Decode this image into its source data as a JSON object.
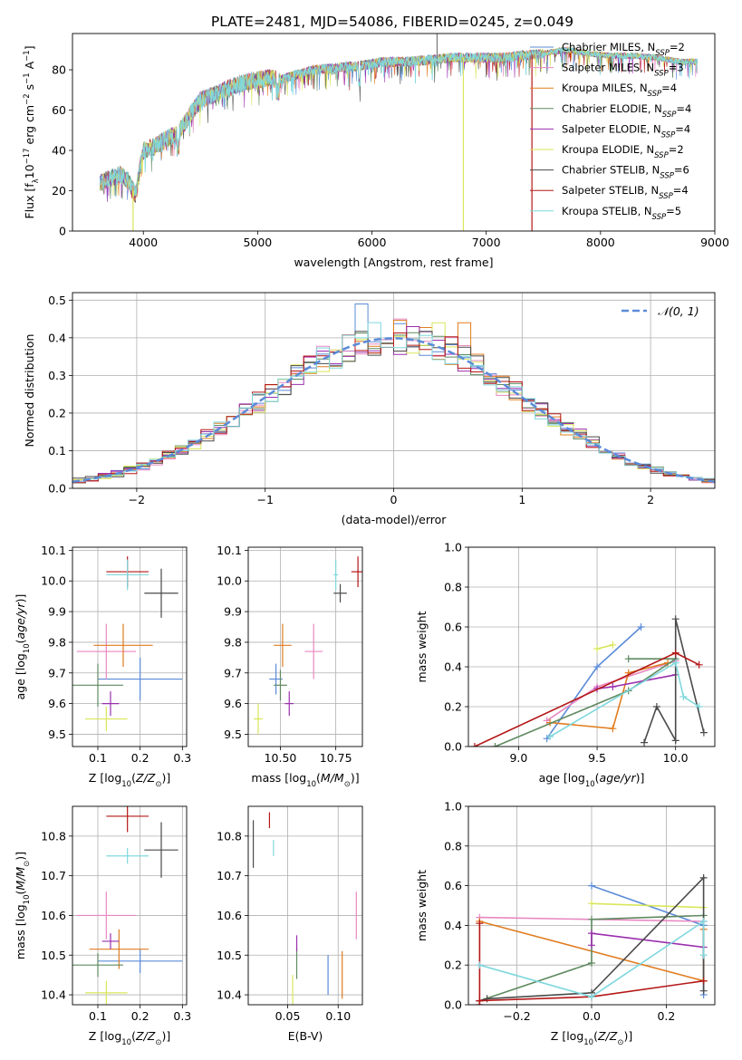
{
  "title": "PLATE=2481, MJD=54086, FIBERID=0245, z=0.049",
  "legend_top": [
    "Chabrier MILES, N$_{SSP}$=2",
    "Salpeter MILES, N$_{SSP}$=3",
    "Kroupa MILES, N$_{SSP}$=4",
    "Chabrier ELODIE, N$_{SSP}$=4",
    "Salpeter ELODIE, N$_{SSP}$=4",
    "Kroupa ELODIE, N$_{SSP}$=2",
    "Chabrier STELIB, N$_{SSP}$=6",
    "Salpeter STELIB, N$_{SSP}$=4",
    "Kroupa STELIB, N$_{SSP}$=5"
  ],
  "legend_top_display": [
    [
      "Chabrier MILES, N",
      "SSP",
      "=2"
    ],
    [
      "Salpeter MILES, N",
      "SSP",
      "=3"
    ],
    [
      "Kroupa MILES, N",
      "SSP",
      "=4"
    ],
    [
      "Chabrier ELODIE, N",
      "SSP",
      "=4"
    ],
    [
      "Salpeter ELODIE, N",
      "SSP",
      "=4"
    ],
    [
      "Kroupa ELODIE, N",
      "SSP",
      "=2"
    ],
    [
      "Chabrier STELIB, N",
      "SSP",
      "=6"
    ],
    [
      "Salpeter STELIB, N",
      "SSP",
      "=4"
    ],
    [
      "Kroupa STELIB, N",
      "SSP",
      "=5"
    ]
  ],
  "colors": [
    "#5b8bd8",
    "#e887c2",
    "#e07c1f",
    "#5f8a60",
    "#9b2fae",
    "#d9e65a",
    "#4a4a4a",
    "#b51717",
    "#7fd8dd"
  ],
  "normal_color": "#5b8bd8",
  "chart_data": [
    {
      "id": "spectrum",
      "type": "line",
      "xlabel": "wavelength [Angstrom, rest frame]",
      "ylabel": "Flux [f$_\\lambda$10$^{-17}$ erg cm$^{-2}$ s$^{-1}$ A$^{-1}$]",
      "xlim": [
        3380,
        9000
      ],
      "ylim": [
        0,
        98
      ],
      "xticks": [
        4000,
        5000,
        6000,
        7000,
        8000,
        9000
      ],
      "yticks": [
        0,
        20,
        40,
        60,
        80
      ],
      "grid": false,
      "legend_position": "top-right",
      "continuum": [
        [
          3620,
          24
        ],
        [
          3700,
          26
        ],
        [
          3800,
          28
        ],
        [
          3870,
          25
        ],
        [
          3930,
          18
        ],
        [
          4000,
          40
        ],
        [
          4100,
          42
        ],
        [
          4200,
          46
        ],
        [
          4300,
          48
        ],
        [
          4400,
          57
        ],
        [
          4500,
          65
        ],
        [
          4600,
          67
        ],
        [
          4700,
          70
        ],
        [
          4800,
          72
        ],
        [
          4900,
          74
        ],
        [
          5000,
          75
        ],
        [
          5100,
          76
        ],
        [
          5200,
          75
        ],
        [
          5300,
          77
        ],
        [
          5500,
          80
        ],
        [
          5700,
          81
        ],
        [
          5900,
          82
        ],
        [
          6100,
          84
        ],
        [
          6300,
          84
        ],
        [
          6500,
          85
        ],
        [
          6700,
          86
        ],
        [
          6900,
          86
        ],
        [
          7100,
          86
        ],
        [
          7300,
          87
        ],
        [
          7500,
          88
        ],
        [
          7700,
          90
        ],
        [
          7900,
          88
        ],
        [
          8100,
          87
        ],
        [
          8300,
          87
        ],
        [
          8500,
          86
        ],
        [
          8700,
          84
        ],
        [
          8850,
          84
        ]
      ],
      "spikes": [
        {
          "x": 3910,
          "ymin": 0
        },
        {
          "x": 6800,
          "ymin": 0
        },
        {
          "x": 7400,
          "ymin": 0
        },
        {
          "x": 6570,
          "ymin": 98
        }
      ]
    },
    {
      "id": "residual_hist",
      "type": "line",
      "xlabel": "(data-model)/error",
      "ylabel": "Normed distribution",
      "xlim": [
        -2.5,
        2.5
      ],
      "ylim": [
        0,
        0.52
      ],
      "xticks": [
        -2,
        -1,
        0,
        1,
        2
      ],
      "yticks": [
        0.0,
        0.1,
        0.2,
        0.3,
        0.4,
        0.5
      ],
      "grid": true,
      "legend_position": "top-right",
      "legend": "$\\mathcal{N}(0,1)$",
      "legend_display": "𝒩(0, 1)",
      "bin_width": 0.1,
      "peak_bins": [
        {
          "x": -0.3,
          "y": 0.49
        },
        {
          "x": 0.0,
          "y": 0.45
        },
        {
          "x": 0.3,
          "y": 0.44
        },
        {
          "x": 0.5,
          "y": 0.44
        }
      ]
    },
    {
      "id": "age_vs_Z",
      "type": "scatter",
      "xlabel": "Z [log$_{10}$(Z/Z$_\\odot$)]",
      "ylabel": "age  [log$_{10}$($age/yr$)]",
      "xlim": [
        0.04,
        0.31
      ],
      "ylim": [
        9.46,
        10.11
      ],
      "xticks": [
        0.1,
        0.2,
        0.3
      ],
      "yticks": [
        9.5,
        9.6,
        9.7,
        9.8,
        9.9,
        10.0,
        10.1
      ],
      "grid": true,
      "points": [
        {
          "x": 0.2,
          "y": 9.68,
          "xerr": 0.1,
          "yerr": 0.07
        },
        {
          "x": 0.12,
          "y": 9.77,
          "xerr": 0.07,
          "yerr": 0.09
        },
        {
          "x": 0.16,
          "y": 9.79,
          "xerr": 0.07,
          "yerr": 0.07
        },
        {
          "x": 0.1,
          "y": 9.66,
          "xerr": 0.06,
          "yerr": 0.07
        },
        {
          "x": 0.13,
          "y": 9.6,
          "xerr": 0.02,
          "yerr": 0.04
        },
        {
          "x": 0.12,
          "y": 9.55,
          "xerr": 0.05,
          "yerr": 0.04
        },
        {
          "x": 0.25,
          "y": 9.96,
          "xerr": 0.04,
          "yerr": 0.08
        },
        {
          "x": 0.17,
          "y": 10.03,
          "xerr": 0.05,
          "yerr": 0.05
        },
        {
          "x": 0.17,
          "y": 10.02,
          "xerr": 0.05,
          "yerr": 0.05
        }
      ]
    },
    {
      "id": "age_vs_mass",
      "type": "scatter",
      "xlabel": "mass [log$_{10}$($M/M_\\odot$)]",
      "ylabel": "",
      "xlim": [
        10.355,
        10.87
      ],
      "ylim": [
        9.46,
        10.11
      ],
      "xticks": [
        10.5,
        10.75
      ],
      "xticklabels": [
        "10.50",
        "10.75"
      ],
      "yticks": [
        9.5,
        9.6,
        9.7,
        9.8,
        9.9,
        10.0,
        10.1
      ],
      "grid": true,
      "points": [
        {
          "x": 10.48,
          "y": 9.68,
          "xerr": 0.03,
          "yerr": 0.05
        },
        {
          "x": 10.65,
          "y": 9.77,
          "xerr": 0.04,
          "yerr": 0.09
        },
        {
          "x": 10.51,
          "y": 9.79,
          "xerr": 0.04,
          "yerr": 0.07
        },
        {
          "x": 10.5,
          "y": 9.66,
          "xerr": 0.03,
          "yerr": 0.05
        },
        {
          "x": 10.54,
          "y": 9.6,
          "xerr": 0.02,
          "yerr": 0.04
        },
        {
          "x": 10.4,
          "y": 9.55,
          "xerr": 0.02,
          "yerr": 0.05
        },
        {
          "x": 10.77,
          "y": 9.96,
          "xerr": 0.03,
          "yerr": 0.03
        },
        {
          "x": 10.85,
          "y": 10.03,
          "xerr": 0.03,
          "yerr": 0.05
        },
        {
          "x": 10.75,
          "y": 10.02,
          "xerr": 0.01,
          "yerr": 0.05
        }
      ]
    },
    {
      "id": "weight_vs_age",
      "type": "line",
      "xlabel": "age  [log$_{10}$($age/yr$)]",
      "ylabel": "mass weight",
      "xlim": [
        8.68,
        10.25
      ],
      "ylim": [
        0,
        1
      ],
      "xticks": [
        9.0,
        9.5,
        10.0
      ],
      "yticks": [
        0.0,
        0.2,
        0.4,
        0.6,
        0.8,
        1.0
      ],
      "grid": true,
      "series": [
        {
          "x": [
            9.18,
            9.5,
            9.78
          ],
          "y": [
            0.04,
            0.4,
            0.6
          ]
        },
        {
          "x": [
            9.18,
            9.5,
            10.0
          ],
          "y": [
            0.13,
            0.3,
            0.43
          ]
        },
        {
          "x": [
            9.2,
            9.6,
            9.7,
            9.95
          ],
          "y": [
            0.12,
            0.09,
            0.37,
            0.42
          ]
        },
        {
          "x": [
            8.85,
            9.7,
            10.0,
            9.7
          ],
          "y": [
            0.0,
            0.28,
            0.44,
            0.44
          ]
        },
        {
          "x": [
            9.5,
            9.6,
            10.0
          ],
          "y": [
            0.29,
            0.3,
            0.36
          ]
        },
        {
          "x": [
            9.5,
            9.6
          ],
          "y": [
            0.49,
            0.51
          ]
        },
        {
          "x": [
            9.8,
            9.88,
            10.0,
            10.0,
            10.18
          ],
          "y": [
            0.02,
            0.2,
            0.03,
            0.64,
            0.07
          ]
        },
        {
          "x": [
            8.72,
            10.0,
            10.15
          ],
          "y": [
            0.0,
            0.47,
            0.41
          ]
        },
        {
          "x": [
            9.2,
            10.0,
            10.05,
            10.15
          ],
          "y": [
            0.05,
            0.42,
            0.25,
            0.2
          ]
        }
      ]
    },
    {
      "id": "mass_vs_Z",
      "type": "scatter",
      "xlabel": "Z [log$_{10}$(Z/Z$_\\odot$)]",
      "ylabel": "mass [log$_{10}$($M/M_\\odot$)]",
      "xlim": [
        0.04,
        0.31
      ],
      "ylim": [
        10.375,
        10.875
      ],
      "xticks": [
        0.1,
        0.2,
        0.3
      ],
      "yticks": [
        10.4,
        10.5,
        10.6,
        10.7,
        10.8
      ],
      "grid": true,
      "points": [
        {
          "x": 0.2,
          "y": 10.485,
          "xerr": 0.1,
          "yerr": 0.03
        },
        {
          "x": 0.12,
          "y": 10.6,
          "xerr": 0.07,
          "yerr": 0.06
        },
        {
          "x": 0.15,
          "y": 10.515,
          "xerr": 0.07,
          "yerr": 0.05
        },
        {
          "x": 0.1,
          "y": 10.475,
          "xerr": 0.06,
          "yerr": 0.03
        },
        {
          "x": 0.13,
          "y": 10.535,
          "xerr": 0.02,
          "yerr": 0.02
        },
        {
          "x": 0.12,
          "y": 10.405,
          "xerr": 0.05,
          "yerr": 0.03
        },
        {
          "x": 0.25,
          "y": 10.765,
          "xerr": 0.04,
          "yerr": 0.07
        },
        {
          "x": 0.17,
          "y": 10.85,
          "xerr": 0.05,
          "yerr": 0.04
        },
        {
          "x": 0.17,
          "y": 10.75,
          "xerr": 0.05,
          "yerr": 0.02
        }
      ]
    },
    {
      "id": "mass_vs_EBV",
      "type": "scatter",
      "xlabel": "E(B-V)",
      "ylabel": "",
      "xlim": [
        0.011,
        0.124
      ],
      "ylim": [
        10.375,
        10.875
      ],
      "xticks": [
        0.05,
        0.1
      ],
      "xticklabels": [
        "0.05",
        "0.10"
      ],
      "yticks": [
        10.4,
        10.5,
        10.6,
        10.7,
        10.8
      ],
      "grid": true,
      "points": [
        {
          "x": 0.09,
          "y": 10.45,
          "xerr": 0,
          "yerr": 0.05
        },
        {
          "x": 0.118,
          "y": 10.6,
          "xerr": 0,
          "yerr": 0.06
        },
        {
          "x": 0.104,
          "y": 10.45,
          "xerr": 0,
          "yerr": 0.06
        },
        {
          "x": 0.059,
          "y": 10.48,
          "xerr": 0,
          "yerr": 0.04
        },
        {
          "x": 0.059,
          "y": 10.53,
          "xerr": 0,
          "yerr": 0.02
        },
        {
          "x": 0.055,
          "y": 10.41,
          "xerr": 0,
          "yerr": 0.04
        },
        {
          "x": 0.016,
          "y": 10.78,
          "xerr": 0,
          "yerr": 0.06
        },
        {
          "x": 0.032,
          "y": 10.84,
          "xerr": 0,
          "yerr": 0.02
        },
        {
          "x": 0.036,
          "y": 10.77,
          "xerr": 0,
          "yerr": 0.02
        }
      ]
    },
    {
      "id": "weight_vs_Z",
      "type": "line",
      "xlabel": "Z [log$_{10}$(Z/Z$_\\odot$)]",
      "ylabel": "mass weight",
      "xlim": [
        -0.33,
        0.33
      ],
      "ylim": [
        0,
        1
      ],
      "xticks": [
        -0.2,
        0.0,
        0.2
      ],
      "yticks": [
        0.0,
        0.2,
        0.4,
        0.6,
        0.8,
        1.0
      ],
      "grid": true,
      "series": [
        {
          "x": [
            0.0,
            0.3,
            0.3
          ],
          "y": [
            0.6,
            0.4,
            0.05
          ]
        },
        {
          "x": [
            -0.3,
            0.3
          ],
          "y": [
            0.44,
            0.42
          ]
        },
        {
          "x": [
            -0.3,
            0.3,
            0.3
          ],
          "y": [
            0.42,
            0.12,
            0.38
          ]
        },
        {
          "x": [
            -0.3,
            0.0,
            0.0,
            0.3
          ],
          "y": [
            0.02,
            0.21,
            0.43,
            0.45
          ]
        },
        {
          "x": [
            0.0,
            0.0,
            0.3
          ],
          "y": [
            0.3,
            0.36,
            0.29
          ]
        },
        {
          "x": [
            0.0,
            0.3
          ],
          "y": [
            0.51,
            0.49
          ]
        },
        {
          "x": [
            -0.3,
            -0.28,
            0.0,
            0.3,
            0.3
          ],
          "y": [
            0.02,
            0.03,
            0.06,
            0.64,
            0.07
          ]
        },
        {
          "x": [
            -0.3,
            -0.3,
            -0.3,
            0.0,
            0.3
          ],
          "y": [
            0.0,
            0.41,
            0.02,
            0.04,
            0.12
          ]
        },
        {
          "x": [
            -0.3,
            0.0,
            0.3,
            0.3
          ],
          "y": [
            0.2,
            0.04,
            0.42,
            0.25
          ]
        }
      ]
    }
  ]
}
